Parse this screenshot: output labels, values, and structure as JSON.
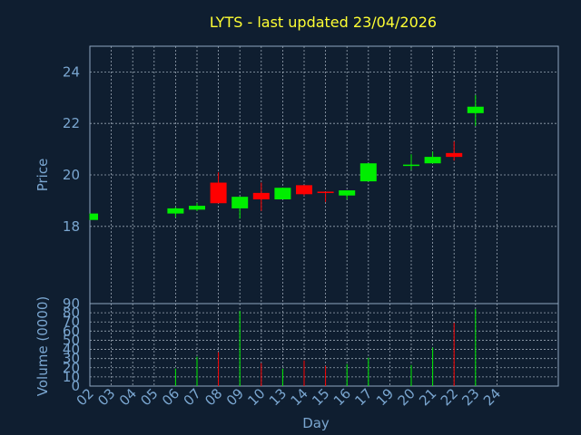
{
  "chart_data": {
    "type": "candlestick",
    "title": "LYTS - last updated 23/04/2026",
    "ylabel_price": "Price",
    "ylabel_volume": "Volume (0000)",
    "xlabel": "Day",
    "x_ticks": [
      "02",
      "03",
      "04",
      "05",
      "06",
      "07",
      "08",
      "09",
      "10",
      "13",
      "14",
      "15",
      "16",
      "17",
      "19",
      "20",
      "21",
      "22",
      "23",
      "24"
    ],
    "price_ylim": [
      15,
      25
    ],
    "price_yticks": [
      "18",
      "20",
      "22",
      "24"
    ],
    "volume_ylim": [
      0,
      90
    ],
    "volume_yticks": [
      "0",
      "10",
      "20",
      "30",
      "40",
      "50",
      "60",
      "70",
      "80",
      "90"
    ],
    "grid": true,
    "up_color": "#00ee00",
    "down_color": "#ff0000",
    "candles": [
      {
        "day": "02",
        "open": 18.25,
        "high": 18.5,
        "low": 18.25,
        "close": 18.5,
        "volume": 0
      },
      {
        "day": "06",
        "open": 18.5,
        "high": 18.75,
        "low": 18.35,
        "close": 18.7,
        "volume": 19
      },
      {
        "day": "07",
        "open": 18.65,
        "high": 18.9,
        "low": 18.6,
        "close": 18.8,
        "volume": 32
      },
      {
        "day": "08",
        "open": 19.7,
        "high": 20.1,
        "low": 18.9,
        "close": 18.9,
        "volume": 37
      },
      {
        "day": "09",
        "open": 18.7,
        "high": 19.15,
        "low": 18.3,
        "close": 19.15,
        "volume": 82
      },
      {
        "day": "10",
        "open": 19.3,
        "high": 19.7,
        "low": 18.6,
        "close": 19.05,
        "volume": 25
      },
      {
        "day": "13",
        "open": 19.05,
        "high": 19.5,
        "low": 19.05,
        "close": 19.5,
        "volume": 19
      },
      {
        "day": "14",
        "open": 19.6,
        "high": 19.6,
        "low": 19.2,
        "close": 19.25,
        "volume": 28
      },
      {
        "day": "15",
        "open": 19.35,
        "high": 19.35,
        "low": 18.95,
        "close": 19.3,
        "volume": 22
      },
      {
        "day": "16",
        "open": 19.2,
        "high": 19.4,
        "low": 19.05,
        "close": 19.4,
        "volume": 24
      },
      {
        "day": "17",
        "open": 19.75,
        "high": 20.45,
        "low": 19.75,
        "close": 20.45,
        "volume": 31
      },
      {
        "day": "20",
        "open": 20.35,
        "high": 20.8,
        "low": 20.2,
        "close": 20.4,
        "volume": 23
      },
      {
        "day": "21",
        "open": 20.45,
        "high": 20.9,
        "low": 20.45,
        "close": 20.7,
        "volume": 42
      },
      {
        "day": "22",
        "open": 20.85,
        "high": 21.3,
        "low": 20.55,
        "close": 20.7,
        "volume": 69
      },
      {
        "day": "23",
        "open": 22.4,
        "high": 23.1,
        "low": 21.9,
        "close": 22.65,
        "volume": 84
      }
    ]
  }
}
